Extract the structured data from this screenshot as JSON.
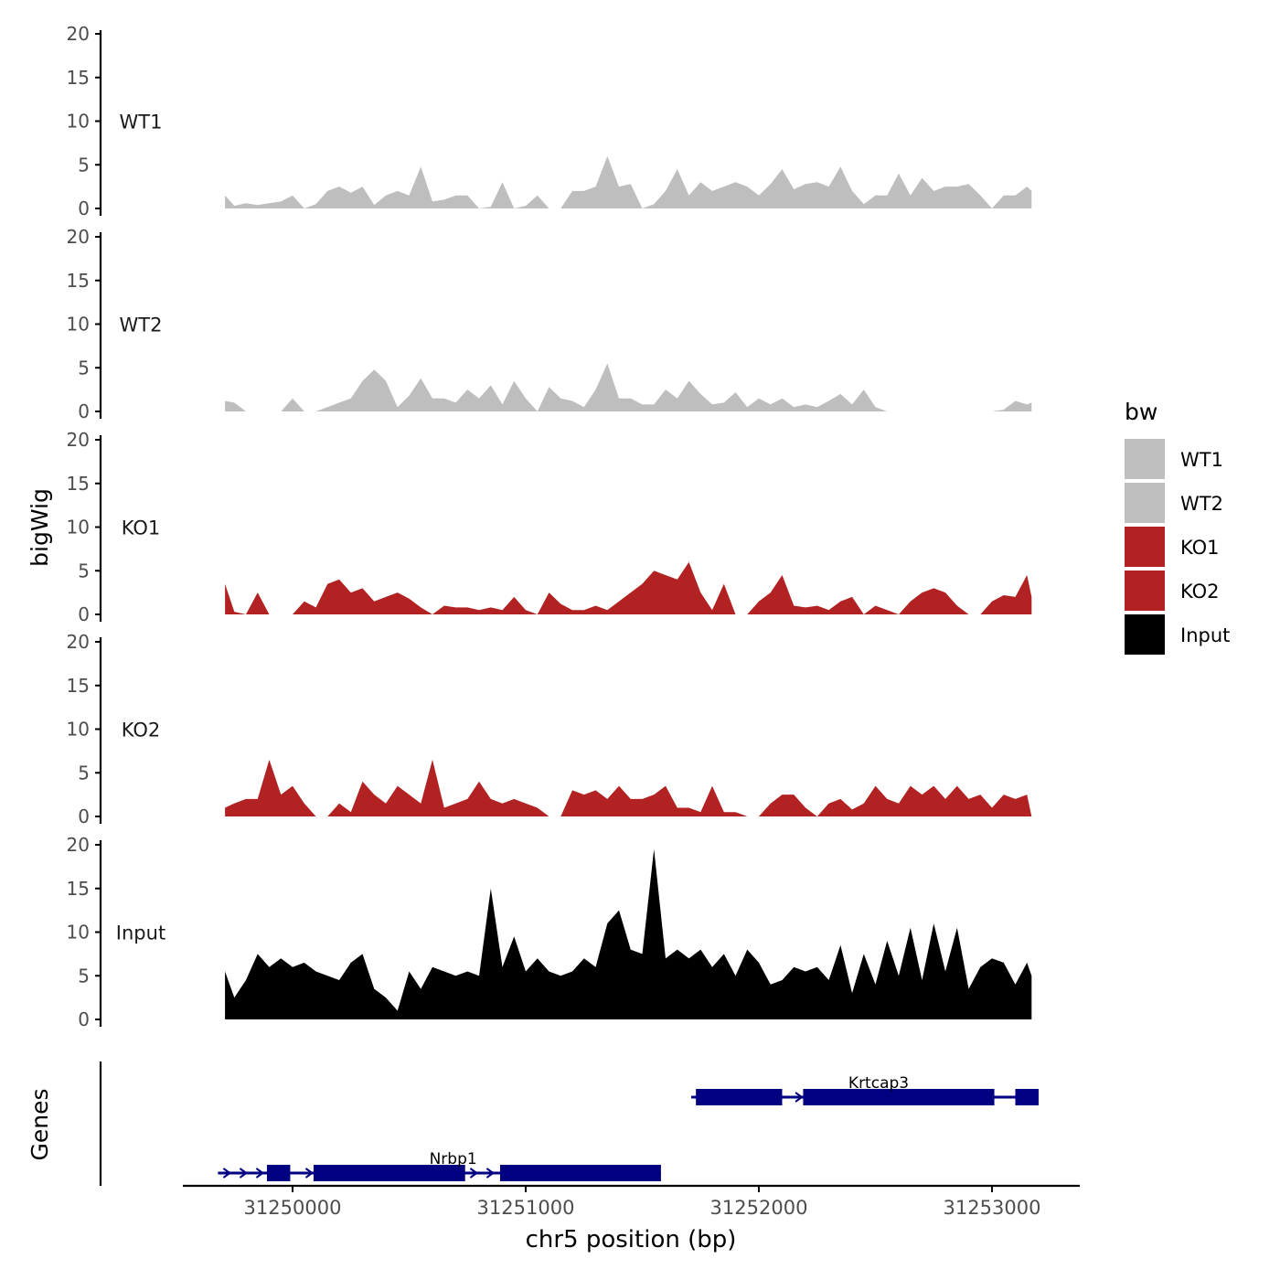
{
  "chart_data": {
    "type": "area",
    "title": "",
    "xlabel": "chr5 position (bp)",
    "ylabel": "bigWig",
    "genes_label": "Genes",
    "xlim": [
      31249540,
      31253370
    ],
    "ylim": [
      0,
      20
    ],
    "yticks": [
      0,
      5,
      10,
      15,
      20
    ],
    "xticks": [
      {
        "value": 31250000,
        "label": "31250000"
      },
      {
        "value": 31251000,
        "label": "31251000"
      },
      {
        "value": 31252000,
        "label": "31252000"
      },
      {
        "value": 31253000,
        "label": "31253000"
      }
    ],
    "legend": {
      "title": "bw",
      "position": "right",
      "entries": [
        {
          "label": "WT1",
          "color": "#bebebe"
        },
        {
          "label": "WT2",
          "color": "#bebebe"
        },
        {
          "label": "KO1",
          "color": "#b22222"
        },
        {
          "label": "KO2",
          "color": "#b22222"
        },
        {
          "label": "Input",
          "color": "#000000"
        }
      ]
    },
    "tracks_x": [
      31249710,
      31249750,
      31249800,
      31249850,
      31249900,
      31249950,
      31250000,
      31250050,
      31250100,
      31250150,
      31250200,
      31250250,
      31250300,
      31250350,
      31250400,
      31250450,
      31250500,
      31250550,
      31250600,
      31250650,
      31250700,
      31250750,
      31250800,
      31250850,
      31250900,
      31250950,
      31251000,
      31251050,
      31251100,
      31251150,
      31251200,
      31251250,
      31251300,
      31251350,
      31251400,
      31251450,
      31251500,
      31251550,
      31251600,
      31251650,
      31251700,
      31251750,
      31251800,
      31251850,
      31251900,
      31251950,
      31252000,
      31252050,
      31252100,
      31252150,
      31252200,
      31252250,
      31252300,
      31252350,
      31252400,
      31252450,
      31252500,
      31252550,
      31252600,
      31252650,
      31252700,
      31252750,
      31252800,
      31252850,
      31252900,
      31252950,
      31253000,
      31253050,
      31253100,
      31253150,
      31253170
    ],
    "series": [
      {
        "name": "WT1",
        "color": "#bebebe",
        "values": [
          1.5,
          0.3,
          0.6,
          0.4,
          0.6,
          0.8,
          1.5,
          0,
          0.5,
          2.0,
          2.5,
          1.8,
          2.5,
          0.4,
          1.5,
          2.0,
          1.5,
          4.8,
          0.8,
          1.0,
          1.5,
          1.5,
          0,
          0.2,
          3.0,
          0,
          0.3,
          1.5,
          0,
          0,
          2.0,
          2.0,
          2.5,
          6.0,
          2.5,
          2.8,
          0,
          0.5,
          2.0,
          4.5,
          1.5,
          3.0,
          2.0,
          2.5,
          3.0,
          2.5,
          1.5,
          2.8,
          4.5,
          2.2,
          2.8,
          3.0,
          2.5,
          4.8,
          2.0,
          0.5,
          1.5,
          1.5,
          4.0,
          1.5,
          3.5,
          2.0,
          2.5,
          2.5,
          2.8,
          1.5,
          0,
          1.5,
          1.5,
          2.5,
          2.0
        ]
      },
      {
        "name": "WT2",
        "color": "#bebebe",
        "values": [
          1.2,
          1.0,
          0,
          0,
          0,
          0,
          1.5,
          0,
          0,
          0.5,
          1.0,
          1.5,
          3.5,
          4.8,
          3.5,
          0.5,
          1.8,
          3.8,
          1.5,
          1.5,
          1.0,
          2.5,
          1.5,
          3.0,
          0.8,
          3.5,
          1.5,
          0,
          2.8,
          1.5,
          1.2,
          0.5,
          2.5,
          5.5,
          1.5,
          1.5,
          0.8,
          0.8,
          2.5,
          1.5,
          3.5,
          2.0,
          0.8,
          1.0,
          2.2,
          0.5,
          1.5,
          0.8,
          1.5,
          0.5,
          0.8,
          0.5,
          1.2,
          2.0,
          0.8,
          2.5,
          0.5,
          0,
          0,
          0,
          0,
          0,
          0,
          0,
          0,
          0,
          0,
          0.2,
          1.2,
          0.8,
          1.0
        ]
      },
      {
        "name": "KO1",
        "color": "#b22222",
        "values": [
          3.5,
          0.3,
          0,
          2.5,
          0,
          0,
          0,
          1.5,
          0.8,
          3.5,
          4.0,
          2.5,
          3.0,
          1.5,
          2.0,
          2.5,
          1.8,
          0.8,
          0,
          1.0,
          0.8,
          0.8,
          0.5,
          0.8,
          0.5,
          2.0,
          0.5,
          0,
          2.5,
          1.2,
          0.5,
          0.5,
          1.0,
          0.5,
          1.5,
          2.5,
          3.5,
          5.0,
          4.5,
          4.0,
          6.0,
          2.5,
          0.5,
          3.5,
          0,
          0,
          1.5,
          2.5,
          4.5,
          1.0,
          0.8,
          1.0,
          0.5,
          1.5,
          2.0,
          0,
          1.0,
          0.5,
          0,
          1.5,
          2.5,
          3.0,
          2.5,
          1.0,
          0,
          0,
          1.5,
          2.2,
          2.0,
          4.5,
          2.0
        ]
      },
      {
        "name": "KO2",
        "color": "#b22222",
        "values": [
          1.0,
          1.5,
          2.0,
          2.0,
          6.5,
          2.5,
          3.5,
          1.5,
          0,
          0,
          1.5,
          0.5,
          4.0,
          2.5,
          1.5,
          3.5,
          2.5,
          1.5,
          6.5,
          1.0,
          1.5,
          2.0,
          4.0,
          2.0,
          1.5,
          2.0,
          1.5,
          1.0,
          0,
          0,
          3.0,
          2.5,
          3.0,
          2.0,
          3.5,
          2.0,
          2.0,
          2.5,
          3.5,
          1.0,
          1.0,
          0.5,
          3.5,
          0.5,
          0.5,
          0,
          0,
          1.5,
          2.5,
          2.5,
          1.0,
          0,
          1.5,
          2.0,
          0.8,
          1.5,
          3.5,
          2.0,
          1.5,
          3.5,
          2.5,
          3.5,
          2.0,
          3.5,
          2.0,
          2.5,
          1.0,
          2.5,
          2.0,
          2.5,
          0
        ]
      },
      {
        "name": "Input",
        "color": "#000000",
        "values": [
          5.5,
          2.5,
          4.5,
          7.5,
          6.0,
          7.0,
          6.0,
          6.5,
          5.5,
          5.0,
          4.5,
          6.5,
          7.5,
          3.5,
          2.5,
          1.0,
          5.5,
          3.5,
          6.0,
          5.5,
          5.0,
          5.5,
          5.0,
          15.0,
          6.0,
          9.5,
          5.5,
          7.0,
          5.5,
          5.0,
          5.5,
          7.0,
          6.0,
          11.0,
          12.5,
          8.0,
          7.5,
          19.5,
          7.0,
          8.0,
          7.0,
          8.0,
          6.0,
          7.5,
          5.0,
          8.0,
          6.5,
          4.0,
          4.5,
          6.0,
          5.5,
          6.0,
          4.5,
          8.5,
          3.0,
          7.5,
          4.0,
          9.0,
          5.0,
          10.5,
          4.5,
          11.0,
          5.5,
          10.5,
          3.5,
          6.0,
          7.0,
          6.5,
          4.0,
          6.5,
          5.0
        ]
      }
    ],
    "genes": [
      {
        "name": "Krtcap3",
        "strand": "+",
        "start": 31251710,
        "end": 31253200,
        "exons": [
          [
            31251730,
            31252100,
            "#000080"
          ],
          [
            31252190,
            31253010,
            "#000080"
          ],
          [
            31253100,
            31253200,
            "#000080"
          ]
        ]
      },
      {
        "name": "Nrbp1",
        "strand": "+",
        "start": 31249680,
        "end": 31251580,
        "exons": [
          [
            31249890,
            31249990,
            "#000080"
          ],
          [
            31250090,
            31250740,
            "#000080"
          ],
          [
            31250890,
            31251580,
            "#000080"
          ]
        ]
      }
    ]
  }
}
